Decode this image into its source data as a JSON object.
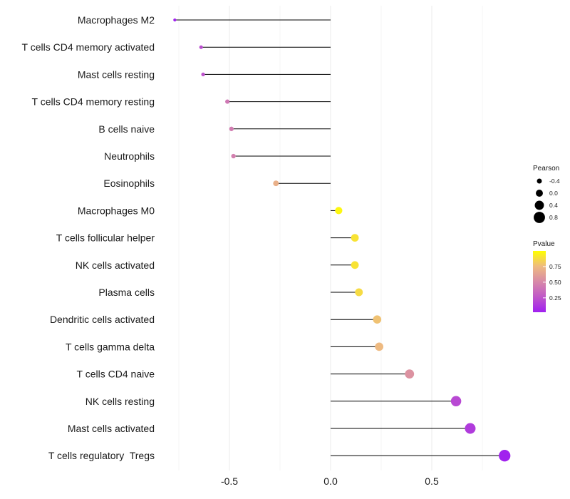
{
  "chart_data": {
    "type": "lollipop",
    "categories": [
      "Macrophages M2",
      "T cells CD4 memory activated",
      "Mast cells resting",
      "T cells CD4 memory resting",
      "B cells naive",
      "Neutrophils",
      "Eosinophils",
      "Macrophages M0",
      "T cells follicular helper",
      "NK cells activated",
      "Plasma cells",
      "Dendritic cells activated",
      "T cells gamma delta",
      "T cells CD4 naive",
      "NK cells resting",
      "Mast cells activated",
      "T cells regulatory  Tregs"
    ],
    "values": [
      -0.77,
      -0.64,
      -0.63,
      -0.51,
      -0.49,
      -0.48,
      -0.27,
      0.04,
      0.12,
      0.12,
      0.14,
      0.23,
      0.24,
      0.39,
      0.62,
      0.69,
      0.86
    ],
    "pvalues": [
      0.03,
      0.22,
      0.24,
      0.42,
      0.44,
      0.46,
      0.7,
      0.97,
      0.9,
      0.9,
      0.87,
      0.78,
      0.75,
      0.55,
      0.2,
      0.14,
      0.03
    ],
    "x_ticks": [
      -0.5,
      0.0,
      0.5
    ],
    "x_tick_labels": [
      "-0.5",
      "0.0",
      "0.5"
    ],
    "xlim": [
      -0.82,
      0.9
    ],
    "xlabel": "",
    "ylabel": "",
    "legend_size": {
      "title": "Pearson",
      "values": [
        -0.4,
        0.0,
        0.4,
        0.8
      ],
      "labels": [
        "-0.4",
        "0.0",
        "0.4",
        "0.8"
      ]
    },
    "legend_color": {
      "title": "Pvalue",
      "ticks": [
        0.25,
        0.5,
        0.75
      ],
      "tick_labels": [
        "0.25",
        "0.50",
        "0.75"
      ],
      "range": [
        0.02,
        1.0
      ],
      "low_color": "#a020f0",
      "high_color": "#ffff00"
    },
    "grid": true
  }
}
